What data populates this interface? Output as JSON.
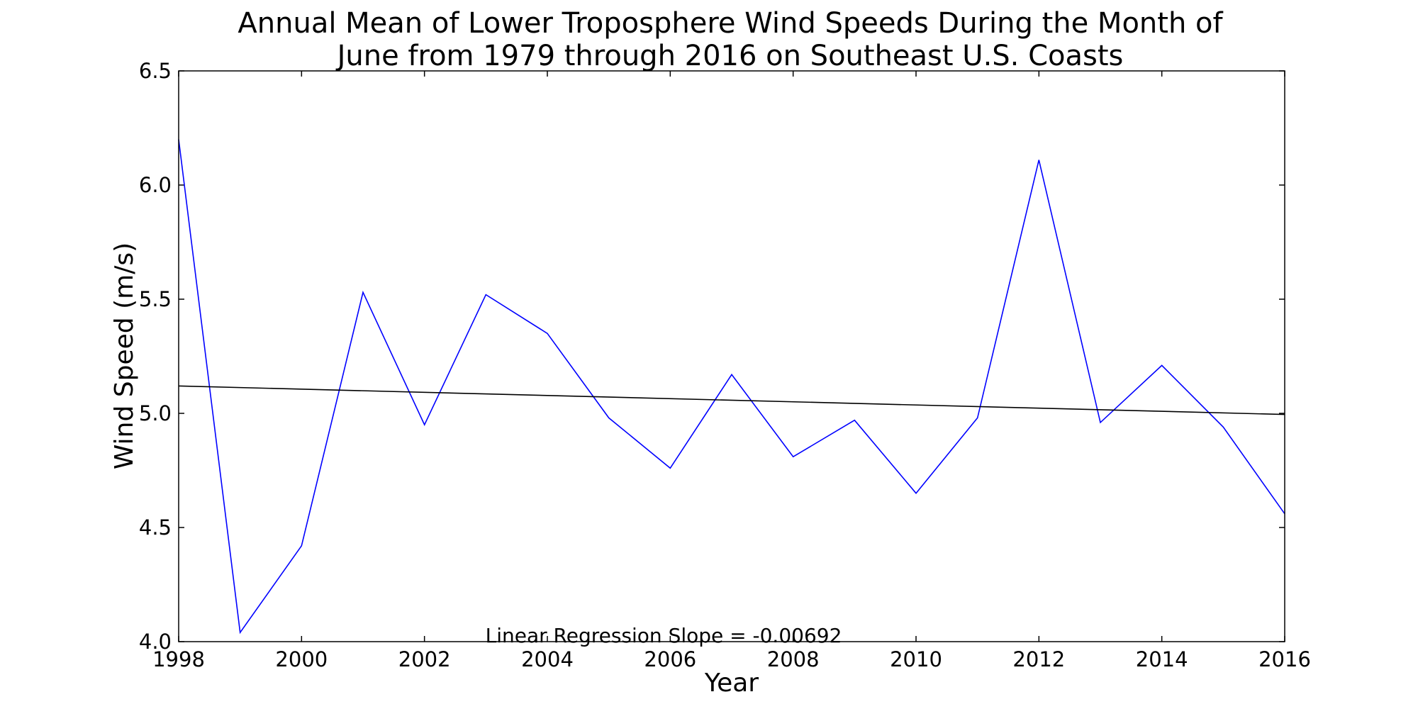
{
  "chart_data": {
    "type": "line",
    "title_lines": [
      "Annual Mean of Lower Troposphere Wind Speeds During the Month of",
      "June from 1979 through 2016 on Southeast U.S. Coasts"
    ],
    "xlabel": "Year",
    "ylabel": "Wind Speed (m/s)",
    "xlim": [
      1998,
      2016
    ],
    "ylim": [
      4.0,
      6.5
    ],
    "x_ticks": [
      1998,
      2000,
      2002,
      2004,
      2006,
      2008,
      2010,
      2012,
      2014,
      2016
    ],
    "x_tick_labels": [
      "1998",
      "2000",
      "2002",
      "2004",
      "2006",
      "2008",
      "2010",
      "2012",
      "2014",
      "2016"
    ],
    "y_ticks": [
      4.0,
      4.5,
      5.0,
      5.5,
      6.0,
      6.5
    ],
    "y_tick_labels": [
      "4.0",
      "4.5",
      "5.0",
      "5.5",
      "6.0",
      "6.5"
    ],
    "grid": false,
    "series": [
      {
        "color": "#0000ff",
        "x": [
          1998,
          1999,
          2000,
          2001,
          2002,
          2003,
          2004,
          2005,
          2006,
          2007,
          2008,
          2009,
          2010,
          2011,
          2012,
          2013,
          2014,
          2015,
          2016
        ],
        "y": [
          6.2,
          4.04,
          4.42,
          5.53,
          4.95,
          5.52,
          5.35,
          4.98,
          4.76,
          5.17,
          4.81,
          4.97,
          4.65,
          4.98,
          6.11,
          4.96,
          5.21,
          4.94,
          4.56
        ]
      },
      {
        "color": "#000000",
        "x": [
          1998,
          2016
        ],
        "y": [
          5.12,
          4.995
        ]
      }
    ],
    "annotation": "Linear Regression Slope = -0.00692"
  }
}
